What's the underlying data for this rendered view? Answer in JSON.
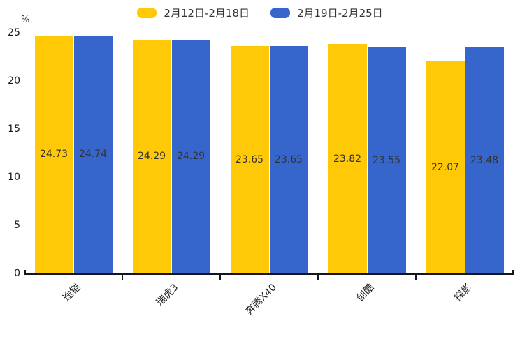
{
  "chart_data": {
    "type": "bar",
    "title": "",
    "xlabel": "",
    "ylabel": "%",
    "categories": [
      "途铠",
      "瑞虎3",
      "奔腾X40",
      "创酷",
      "探影"
    ],
    "series": [
      {
        "name": "2月12日-2月18日",
        "color": "#FFC907",
        "values": [
          24.73,
          24.29,
          23.65,
          23.82,
          22.07
        ]
      },
      {
        "name": "2月19日-2月25日",
        "color": "#3666CC",
        "values": [
          24.74,
          24.29,
          23.65,
          23.55,
          23.48
        ]
      }
    ],
    "ylim": [
      0,
      25
    ],
    "yticks": [
      25,
      20,
      15,
      10,
      5,
      0
    ],
    "grid": false,
    "legend_position": "top-center",
    "value_label_position": "inside-center",
    "x_tick_rotation": 45,
    "axis_color": "#15151f",
    "value_label_color": "#333333"
  }
}
